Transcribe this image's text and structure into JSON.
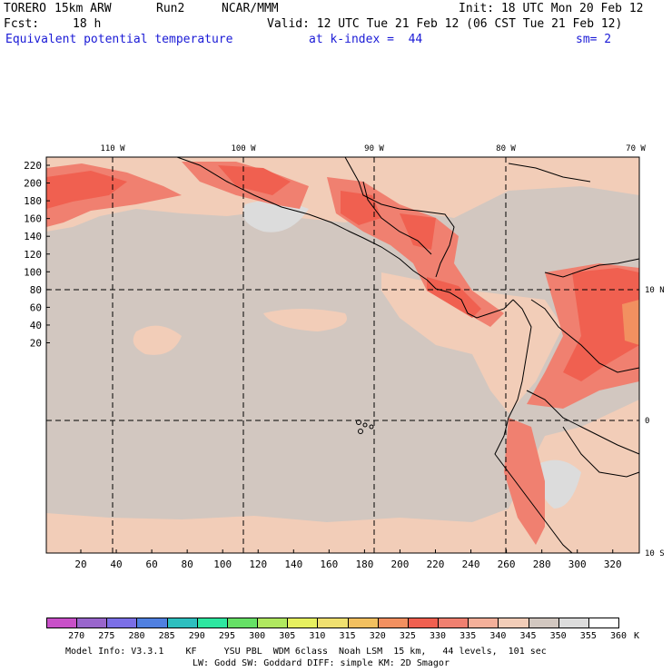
{
  "header": {
    "model": "TORERO",
    "resolution": "15km ARW",
    "run": "Run2",
    "org": "NCAR/MMM",
    "init": "Init: 18 UTC Mon 20 Feb 12",
    "fcst_label": "Fcst:",
    "fcst_hours": "18 h",
    "valid": "Valid: 12 UTC Tue 21 Feb 12 (06 CST Tue 21 Feb 12)",
    "field": "Equivalent potential temperature",
    "level": "at k-index =  44",
    "smoothing": "sm= 2"
  },
  "map": {
    "lon_labels": [
      "110 W",
      "100 W",
      "90 W",
      "80 W",
      "70 W"
    ],
    "lat_labels": [
      "10 N",
      "0",
      "10 S"
    ],
    "y_ticks": [
      "220",
      "200",
      "180",
      "160",
      "140",
      "120",
      "100",
      "80",
      "60",
      "40",
      "20"
    ],
    "x_ticks": [
      "20",
      "40",
      "60",
      "80",
      "100",
      "120",
      "140",
      "160",
      "180",
      "200",
      "220",
      "240",
      "260",
      "280",
      "300",
      "320"
    ],
    "background_color": "#d2c7c0"
  },
  "colorbar": {
    "unit": "K",
    "labels": [
      "270",
      "275",
      "280",
      "285",
      "290",
      "295",
      "300",
      "305",
      "310",
      "315",
      "320",
      "325",
      "330",
      "335",
      "340",
      "345",
      "350",
      "355",
      "360"
    ],
    "colors": [
      "#c850c8",
      "#9966cc",
      "#7b6fe6",
      "#5080e0",
      "#2ebfbf",
      "#2ee6a0",
      "#66e066",
      "#b0e860",
      "#e6f060",
      "#f0e070",
      "#f2c060",
      "#f29060",
      "#f06050",
      "#f08070",
      "#f4b09a",
      "#f2cdb8",
      "#d2c7c0",
      "#dcdcdc",
      "#ffffff"
    ]
  },
  "footer": {
    "line1": "Model Info: V3.3.1    KF     YSU PBL  WDM 6class  Noah LSM  15 km,   44 levels,  101 sec",
    "line2": "LW: Godd SW: Goddard DIFF: simple KM: 2D Smagor"
  }
}
